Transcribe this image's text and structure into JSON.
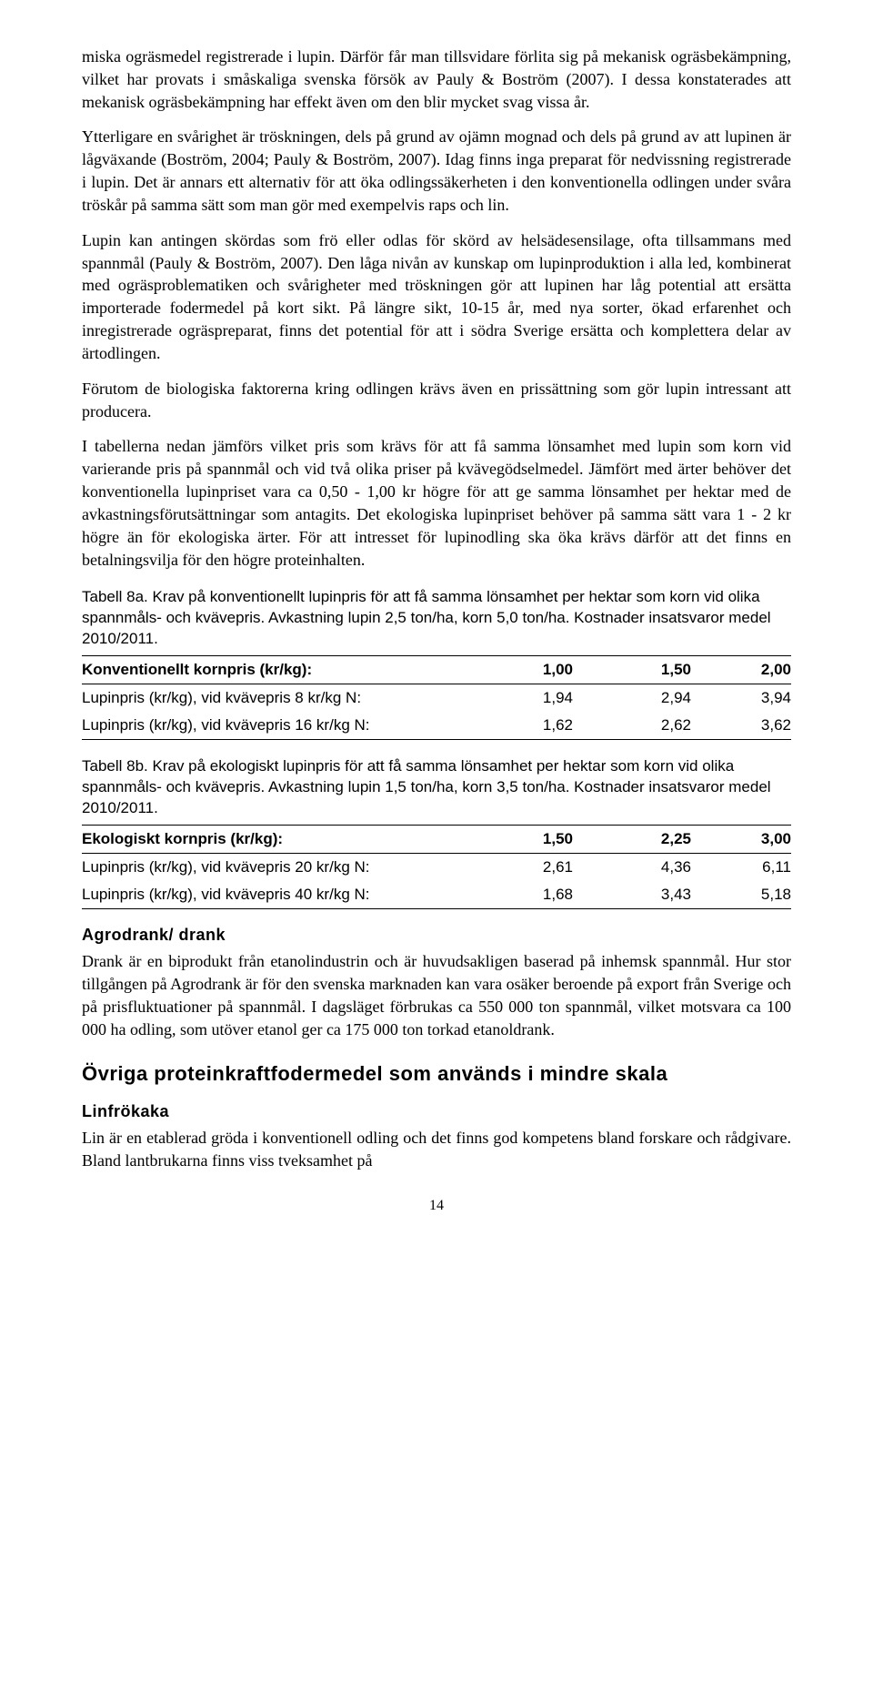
{
  "paragraphs": {
    "p1": "miska ogräsmedel registrerade i lupin. Därför får man tillsvidare förlita sig på mekanisk ogräsbekämpning, vilket har provats i småskaliga svenska försök av Pauly & Boström (2007). I dessa konstaterades att mekanisk ogräsbekämpning har effekt även om den blir mycket svag vissa år.",
    "p2": "Ytterligare en svårighet är tröskningen, dels på grund av ojämn mognad och dels på grund av att lupinen är lågväxande (Boström, 2004; Pauly & Boström, 2007). Idag finns inga preparat för nedvissning registrerade i lupin. Det är annars ett alternativ för att öka odlingssäkerheten i den konventionella odlingen under svåra tröskår på samma sätt som man gör med exempelvis raps och lin.",
    "p3": "Lupin kan antingen skördas som frö eller odlas för skörd av helsädesensilage, ofta tillsammans med spannmål (Pauly & Boström, 2007). Den låga nivån av kunskap om lupinproduktion i alla led, kombinerat med ogräsproblematiken och svårigheter med tröskningen gör att lupinen har låg potential att ersätta importerade fodermedel på kort sikt. På längre sikt, 10-15 år, med nya sorter, ökad erfarenhet och inregistrerade ogräspreparat, finns det potential för att i södra Sverige ersätta och komplettera delar av ärtodlingen.",
    "p4": "Förutom de biologiska faktorerna kring odlingen krävs även en prissättning som gör lupin intressant att producera.",
    "p5": "I tabellerna nedan jämförs vilket pris som krävs för att få samma lönsamhet med lupin som korn vid varierande pris på spannmål och vid två olika priser på kvävegödselmedel. Jämfört med ärter behöver det konventionella lupinpriset vara ca 0,50 - 1,00 kr högre för att ge samma lönsamhet per hektar med de avkastningsförutsättningar som antagits. Det ekologiska lupinpriset behöver på samma sätt vara 1 - 2 kr högre än för ekologiska ärter. För att intresset för lupinodling ska öka krävs därför att det finns en betalningsvilja för den högre proteinhalten."
  },
  "table_a": {
    "caption": "Tabell 8a. Krav på konventionellt lupinpris för att få samma lönsamhet per hektar som korn vid olika spannmåls- och kvävepris. Avkastning lupin 2,5 ton/ha, korn 5,0 ton/ha. Kostnader insatsvaror medel 2010/2011.",
    "header": "Konventionellt kornpris (kr/kg):",
    "headers": [
      "1,00",
      "1,50",
      "2,00"
    ],
    "rows": [
      {
        "label": "Lupinpris (kr/kg), vid kvävepris 8 kr/kg N:",
        "v": [
          "1,94",
          "2,94",
          "3,94"
        ]
      },
      {
        "label": "Lupinpris (kr/kg), vid kvävepris 16 kr/kg N:",
        "v": [
          "1,62",
          "2,62",
          "3,62"
        ]
      }
    ]
  },
  "table_b": {
    "caption": "Tabell 8b. Krav på ekologiskt lupinpris för att få samma lönsamhet per hektar som korn vid olika spannmåls- och kvävepris. Avkastning lupin 1,5 ton/ha, korn 3,5 ton/ha. Kostnader insatsvaror medel 2010/2011.",
    "header": "Ekologiskt kornpris (kr/kg):",
    "headers": [
      "1,50",
      "2,25",
      "3,00"
    ],
    "rows": [
      {
        "label": "Lupinpris (kr/kg), vid kvävepris 20 kr/kg N:",
        "v": [
          "2,61",
          "4,36",
          "6,11"
        ]
      },
      {
        "label": "Lupinpris (kr/kg), vid kvävepris 40 kr/kg N:",
        "v": [
          "1,68",
          "3,43",
          "5,18"
        ]
      }
    ]
  },
  "agrodrank": {
    "heading": "Agrodrank/ drank",
    "text": "Drank är en biprodukt från etanolindustrin och är huvudsakligen baserad på inhemsk spannmål. Hur stor tillgången på Agrodrank är för den svenska marknaden kan vara osäker beroende på export från Sverige och på prisfluktuationer på spannmål. I dagsläget förbrukas ca 550 000 ton spannmål, vilket motsvara ca 100 000 ha odling, som utöver etanol ger ca 175 000 ton torkad etanoldrank."
  },
  "ovriga": {
    "heading": "Övriga proteinkraftfodermedel som används i mindre skala"
  },
  "linfrokaka": {
    "heading": "Linfrökaka",
    "text": "Lin är en etablerad gröda i konventionell odling och det finns god kompetens bland forskare och rådgivare. Bland lantbrukarna finns viss tveksamhet på"
  },
  "page_number": "14"
}
